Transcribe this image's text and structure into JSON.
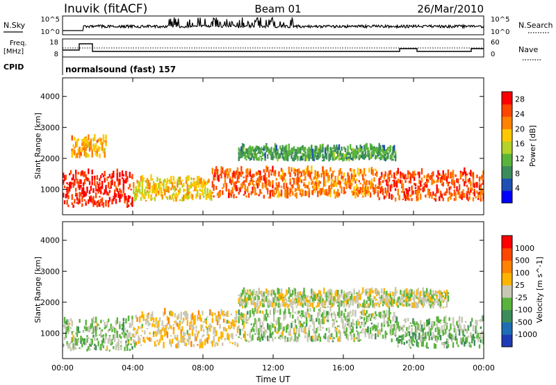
{
  "header": {
    "station": "Inuvik (fitACF)",
    "beam": "Beam 01",
    "date": "26/Mar/2010"
  },
  "top_panels": {
    "nsky": {
      "label": "N.Sky",
      "tick_top": "10^5",
      "tick_bottom": "10^0",
      "right_tick_top": "10^5",
      "right_tick_bottom": "10^0",
      "right_label": "N.Search"
    },
    "freq": {
      "label_line1": "Freq.",
      "label_line2": "[MHz]",
      "ticks": [
        "18",
        "8"
      ],
      "right_ticks": [
        "60",
        "0"
      ],
      "right_label": "Nave"
    },
    "cpid": {
      "label": "CPID",
      "mode": "normalsound (fast) 157"
    }
  },
  "x_axis": {
    "label": "Time UT",
    "ticks": [
      "00:00",
      "04:00",
      "08:00",
      "12:00",
      "16:00",
      "20:00",
      "00:00"
    ]
  },
  "colors": {
    "power_scale": [
      "#0000ff",
      "#1e4fb4",
      "#3c8c5a",
      "#5ab43c",
      "#b4d228",
      "#ffc800",
      "#ff8200",
      "#ff4600",
      "#ff0000"
    ],
    "velocity_scale": [
      "#1e3cb4",
      "#1e6eb4",
      "#3c8c5a",
      "#5ab43c",
      "#c8c8b4",
      "#ffb400",
      "#ff8200",
      "#ff4600",
      "#ff0000"
    ]
  },
  "chart_data": [
    {
      "type": "heatmap",
      "panel": "power",
      "ylabel": "Slant Range [km]",
      "xlabel": "",
      "ylim": [
        180,
        4600
      ],
      "y_ticks": [
        "1000",
        "2000",
        "3000",
        "4000"
      ],
      "colorbar": {
        "label": "Power [dB]",
        "ticks": [
          "4",
          "8",
          "12",
          "16",
          "20",
          "24",
          "28"
        ],
        "range": [
          0,
          30
        ]
      },
      "bands": [
        {
          "t_start": 0.0,
          "t_end": 4.0,
          "r_low": 400,
          "r_high": 1500,
          "value": 27
        },
        {
          "t_start": 4.0,
          "t_end": 8.5,
          "r_low": 600,
          "r_high": 1300,
          "value": 18
        },
        {
          "t_start": 8.5,
          "t_end": 12.0,
          "r_low": 700,
          "r_high": 1600,
          "value": 24
        },
        {
          "t_start": 12.0,
          "t_end": 18.0,
          "r_low": 700,
          "r_high": 1600,
          "value": 22
        },
        {
          "t_start": 18.0,
          "t_end": 24.0,
          "r_low": 600,
          "r_high": 1500,
          "value": 25
        },
        {
          "t_start": 10.0,
          "t_end": 19.0,
          "r_low": 1900,
          "r_high": 2300,
          "value": 10
        },
        {
          "t_start": 0.5,
          "t_end": 2.5,
          "r_low": 2000,
          "r_high": 2600,
          "value": 20
        }
      ]
    },
    {
      "type": "heatmap",
      "panel": "velocity",
      "ylabel": "Slant Range [km]",
      "xlabel": "Time UT",
      "ylim": [
        180,
        4600
      ],
      "y_ticks": [
        "1000",
        "2000",
        "3000",
        "4000"
      ],
      "colorbar": {
        "label": "Velocity [m s^-1]",
        "ticks": [
          "1000",
          "500",
          "100",
          "25",
          "-25",
          "-100",
          "-500",
          "-1000"
        ],
        "range": [
          -1200,
          1200
        ]
      },
      "bands": [
        {
          "t_start": 0.0,
          "t_end": 4.0,
          "r_low": 400,
          "r_high": 1400,
          "value": -150
        },
        {
          "t_start": 4.0,
          "t_end": 10.0,
          "r_low": 500,
          "r_high": 1600,
          "value": 150
        },
        {
          "t_start": 10.0,
          "t_end": 19.0,
          "r_low": 700,
          "r_high": 1700,
          "value": -120
        },
        {
          "t_start": 19.0,
          "t_end": 24.0,
          "r_low": 500,
          "r_high": 1400,
          "value": -200
        },
        {
          "t_start": 10.0,
          "t_end": 22.0,
          "r_low": 1800,
          "r_high": 2300,
          "value": 0
        }
      ]
    }
  ]
}
